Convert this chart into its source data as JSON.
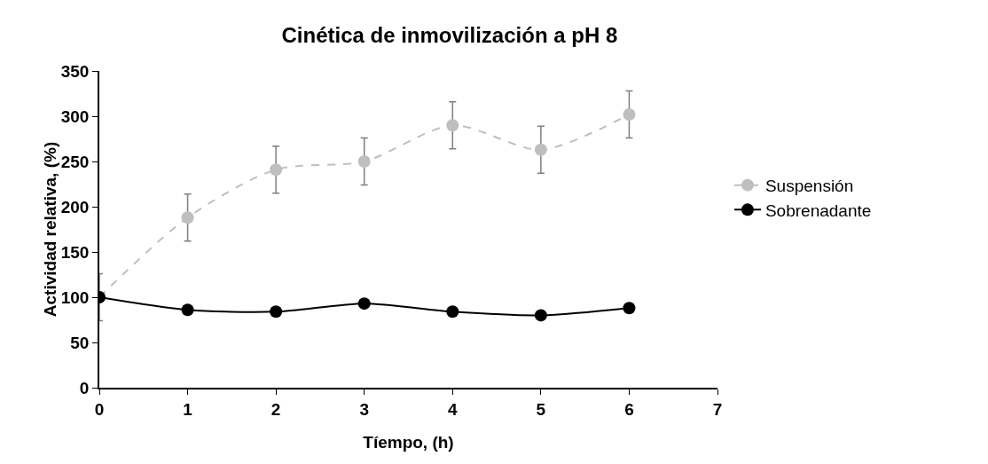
{
  "chart_data": {
    "type": "line",
    "title": "Cinética de inmovilización a pH 8",
    "xlabel": "Tíempo, (h)",
    "ylabel": "Actividad relativa, (%)",
    "x": [
      0,
      1,
      2,
      3,
      4,
      5,
      6
    ],
    "series": [
      {
        "name": "Suspensión",
        "color": "#bfbfbf",
        "values": [
          100,
          188,
          241,
          250,
          290,
          263,
          302
        ],
        "errors": [
          26,
          26,
          26,
          26,
          26,
          26,
          26
        ],
        "line_style": "dashed"
      },
      {
        "name": "Sobrenadante",
        "color": "#000000",
        "values": [
          100,
          86,
          84,
          93,
          84,
          80,
          88
        ],
        "line_style": "solid"
      }
    ],
    "xlim": [
      0,
      7
    ],
    "xticks": [
      0,
      1,
      2,
      3,
      4,
      5,
      6,
      7
    ],
    "ylim": [
      0,
      350
    ],
    "yticks": [
      0,
      50,
      100,
      150,
      200,
      250,
      300,
      350
    ],
    "grid": false,
    "legend": "right",
    "marker": "circle"
  }
}
